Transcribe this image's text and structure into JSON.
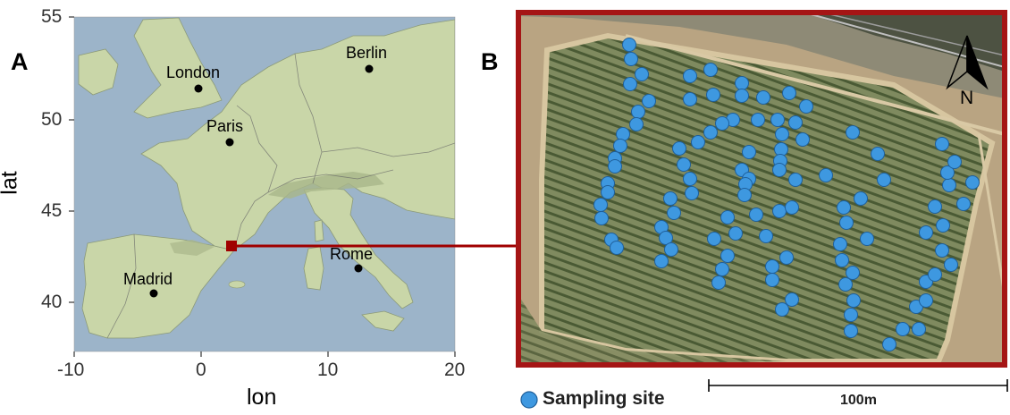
{
  "panels": {
    "a_label": "A",
    "b_label": "B"
  },
  "map": {
    "x_axis": {
      "title": "lon",
      "ticks": [
        -10,
        0,
        10,
        20
      ],
      "range": [
        -10,
        20
      ]
    },
    "y_axis": {
      "title": "lat",
      "ticks": [
        40,
        45,
        50,
        55
      ],
      "range": [
        37.5,
        55
      ]
    },
    "cities": [
      {
        "name": "London",
        "lon": -0.1,
        "lat": 51.5
      },
      {
        "name": "Berlin",
        "lon": 13.4,
        "lat": 52.5
      },
      {
        "name": "Paris",
        "lon": 2.3,
        "lat": 48.8
      },
      {
        "name": "Rome",
        "lon": 12.5,
        "lat": 41.9
      },
      {
        "name": "Madrid",
        "lon": -3.7,
        "lat": 40.4
      }
    ],
    "study_site": {
      "lon": 2.5,
      "lat": 43.0,
      "color": "#a00000"
    },
    "colors": {
      "sea": "#9cb4c9",
      "land": "#c9d6a8",
      "border": "#555555"
    }
  },
  "aerial": {
    "north_label": "N",
    "frame_color": "#a51515",
    "sample_color": "#3e98e0"
  },
  "legend": {
    "marker_label": "Sampling site",
    "marker_color": "#3e98e0"
  },
  "scale_bar": {
    "label": "100m"
  }
}
